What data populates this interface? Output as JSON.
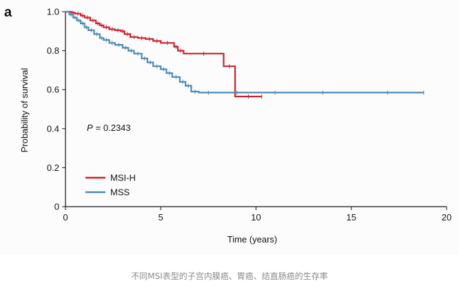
{
  "chart_data": {
    "type": "line",
    "panel_label": "a",
    "xlabel": "Time (years)",
    "ylabel": "Probability of survival",
    "xlim": [
      0,
      20
    ],
    "ylim": [
      0,
      1
    ],
    "xticks": [
      "0",
      "5",
      "10",
      "15",
      "20"
    ],
    "yticks": [
      "0",
      "0.2",
      "0.4",
      "0.6",
      "0.8",
      "1.0"
    ],
    "annotation": "= 0.2343",
    "annotation_prefix": "P",
    "legend_position": "bottom-left",
    "series": [
      {
        "name": "MSI-H",
        "color": "#c8202f",
        "x": [
          0,
          0.3,
          0.5,
          0.8,
          1.0,
          1.3,
          1.6,
          1.8,
          2.0,
          2.3,
          2.6,
          2.9,
          3.1,
          3.4,
          3.8,
          4.2,
          4.6,
          5.0,
          5.7,
          5.9,
          6.2,
          8.3,
          8.9,
          10.3
        ],
        "y": [
          1.0,
          0.995,
          0.99,
          0.98,
          0.97,
          0.955,
          0.94,
          0.93,
          0.92,
          0.91,
          0.905,
          0.9,
          0.885,
          0.87,
          0.865,
          0.86,
          0.85,
          0.84,
          0.82,
          0.8,
          0.785,
          0.72,
          0.565,
          0.565
        ]
      },
      {
        "name": "MSS",
        "color": "#4a8ab4",
        "x": [
          0,
          0.2,
          0.4,
          0.6,
          0.8,
          1.0,
          1.2,
          1.5,
          1.8,
          2.0,
          2.3,
          2.6,
          3.0,
          3.3,
          3.6,
          4.0,
          4.3,
          4.6,
          5.0,
          5.3,
          5.6,
          6.0,
          6.3,
          6.6,
          7.0,
          8.0,
          10.0,
          12.0,
          15.0,
          18.8
        ],
        "y": [
          1.0,
          0.985,
          0.97,
          0.955,
          0.94,
          0.92,
          0.905,
          0.885,
          0.865,
          0.855,
          0.84,
          0.83,
          0.815,
          0.8,
          0.785,
          0.76,
          0.74,
          0.72,
          0.705,
          0.685,
          0.665,
          0.64,
          0.62,
          0.59,
          0.585,
          0.585,
          0.585,
          0.585,
          0.585,
          0.585
        ]
      }
    ]
  },
  "caption": "不同MSI表型的子宫内膜癌、胃癌、结直肠癌的生存率"
}
